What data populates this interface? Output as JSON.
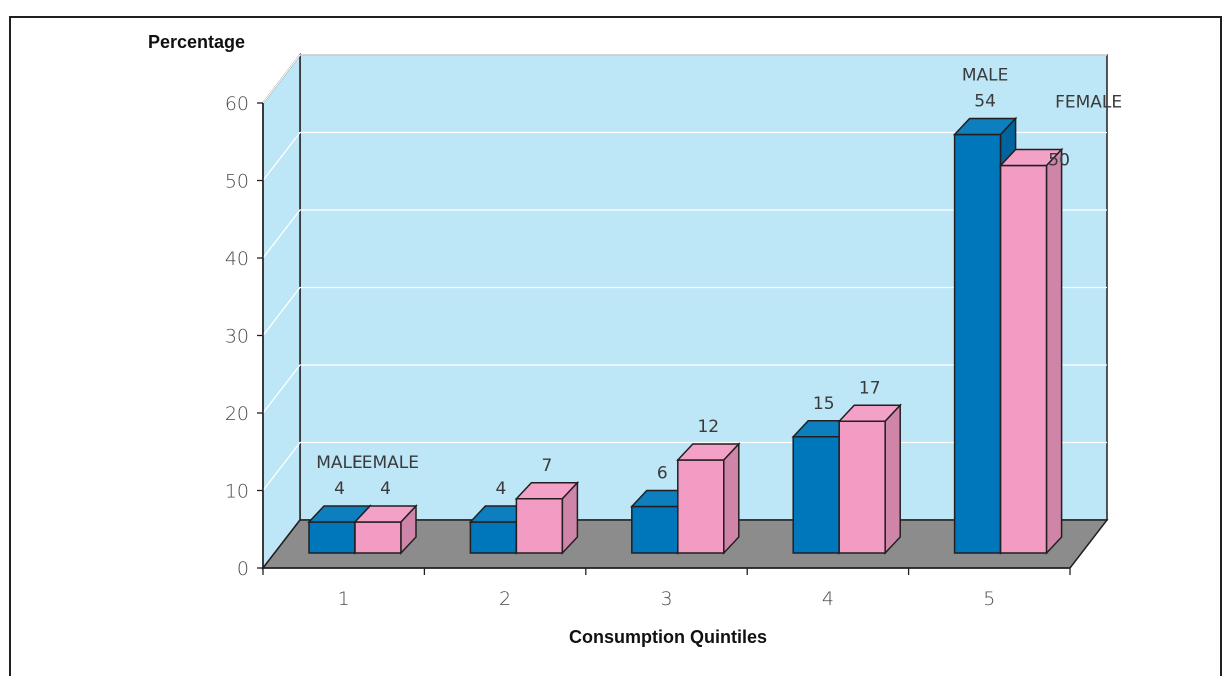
{
  "chart_data": {
    "type": "bar",
    "ylabel": "Percentage",
    "xlabel": "Consumption Quintiles",
    "categories": [
      "1",
      "2",
      "3",
      "4",
      "5"
    ],
    "ylim": [
      0,
      60
    ],
    "yticks": [
      "0",
      "10",
      "20",
      "30",
      "40",
      "50",
      "60"
    ],
    "grid": true,
    "series": [
      {
        "name": "MALE",
        "color": "#0077bb",
        "values": [
          4,
          4,
          6,
          15,
          54
        ]
      },
      {
        "name": "FEMALE",
        "color": "#f29cc4",
        "values": [
          4,
          7,
          12,
          17,
          50
        ]
      }
    ],
    "value_labels": {
      "MALE": [
        "4",
        "4",
        "6",
        "15",
        "54"
      ],
      "FEMALE": [
        "4",
        "7",
        "12",
        "17",
        "50"
      ]
    },
    "series_annotations": [
      {
        "group": "1",
        "labels": [
          "MALE",
          "FEMALE"
        ]
      },
      {
        "group": "5",
        "labels": [
          "MALE",
          "FEMALE"
        ]
      }
    ],
    "plot_background": "#bde6f7",
    "floor_color": "#8c8c8c"
  }
}
